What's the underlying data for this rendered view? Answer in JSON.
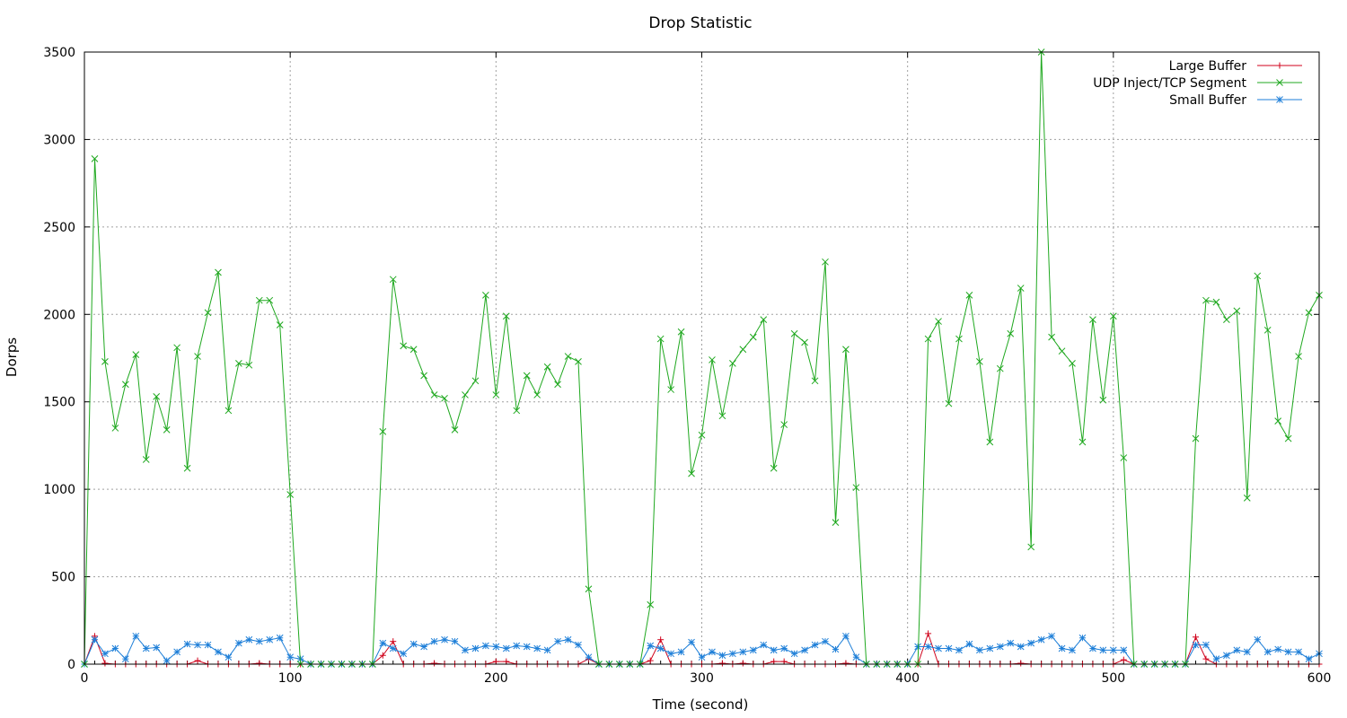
{
  "chart_data": {
    "type": "line",
    "title": "Drop Statistic",
    "xlabel": "Time (second)",
    "ylabel": "Dorps",
    "xlim": [
      0,
      600
    ],
    "ylim": [
      0,
      3500
    ],
    "x_ticks": [
      0,
      100,
      200,
      300,
      400,
      500,
      600
    ],
    "y_ticks": [
      0,
      500,
      1000,
      1500,
      2000,
      2500,
      3000,
      3500
    ],
    "grid": true,
    "legend_position": "top-right",
    "x": [
      0,
      5,
      10,
      15,
      20,
      25,
      30,
      35,
      40,
      45,
      50,
      55,
      60,
      65,
      70,
      75,
      80,
      85,
      90,
      95,
      100,
      105,
      110,
      115,
      120,
      125,
      130,
      135,
      140,
      145,
      150,
      155,
      160,
      165,
      170,
      175,
      180,
      185,
      190,
      195,
      200,
      205,
      210,
      215,
      220,
      225,
      230,
      235,
      240,
      245,
      250,
      255,
      260,
      265,
      270,
      275,
      280,
      285,
      290,
      295,
      300,
      305,
      310,
      315,
      320,
      325,
      330,
      335,
      340,
      345,
      350,
      355,
      360,
      365,
      370,
      375,
      380,
      385,
      390,
      395,
      400,
      405,
      410,
      415,
      420,
      425,
      430,
      435,
      440,
      445,
      450,
      455,
      460,
      465,
      470,
      475,
      480,
      485,
      490,
      495,
      500,
      505,
      510,
      515,
      520,
      525,
      530,
      535,
      540,
      545,
      550,
      555,
      560,
      565,
      570,
      575,
      580,
      585,
      590,
      595,
      600
    ],
    "series": [
      {
        "name": "Large Buffer",
        "color": "#d0021b",
        "marker": "plus",
        "values": [
          0,
          160,
          5,
          0,
          0,
          0,
          0,
          0,
          0,
          0,
          0,
          20,
          0,
          0,
          0,
          0,
          0,
          5,
          0,
          0,
          0,
          0,
          0,
          0,
          0,
          0,
          0,
          0,
          0,
          50,
          130,
          0,
          0,
          0,
          5,
          0,
          0,
          0,
          0,
          0,
          15,
          15,
          0,
          0,
          0,
          0,
          0,
          0,
          0,
          30,
          0,
          0,
          0,
          0,
          0,
          20,
          140,
          0,
          0,
          0,
          0,
          0,
          5,
          0,
          5,
          0,
          0,
          15,
          15,
          0,
          0,
          0,
          0,
          0,
          5,
          0,
          0,
          0,
          0,
          0,
          0,
          0,
          175,
          0,
          0,
          0,
          0,
          0,
          0,
          0,
          0,
          5,
          0,
          0,
          0,
          0,
          0,
          0,
          0,
          0,
          0,
          25,
          0,
          0,
          0,
          0,
          0,
          0,
          155,
          30,
          0,
          0,
          0,
          0,
          0,
          0,
          0,
          0,
          0,
          0,
          0
        ]
      },
      {
        "name": "UDP Inject/TCP Segment",
        "color": "#1fa81f",
        "marker": "x",
        "values": [
          0,
          2890,
          1730,
          1350,
          1600,
          1770,
          1170,
          1530,
          1340,
          1810,
          1120,
          1760,
          2010,
          2240,
          1450,
          1720,
          1710,
          2080,
          2080,
          1940,
          970,
          0,
          0,
          0,
          0,
          0,
          0,
          0,
          0,
          1330,
          2200,
          1820,
          1800,
          1650,
          1540,
          1520,
          1340,
          1540,
          1620,
          2110,
          1540,
          1990,
          1450,
          1650,
          1540,
          1700,
          1600,
          1760,
          1730,
          430,
          0,
          0,
          0,
          0,
          0,
          340,
          1860,
          1570,
          1900,
          1090,
          1310,
          1740,
          1420,
          1720,
          1800,
          1870,
          1970,
          1120,
          1370,
          1890,
          1840,
          1620,
          2300,
          810,
          1800,
          1010,
          0,
          0,
          0,
          0,
          0,
          0,
          1860,
          1960,
          1490,
          1860,
          2110,
          1730,
          1270,
          1690,
          1890,
          2150,
          670,
          3500,
          1870,
          1790,
          1720,
          1270,
          1970,
          1510,
          1990,
          1180,
          0,
          0,
          0,
          0,
          0,
          0,
          1290,
          2080,
          2070,
          1970,
          2020,
          950,
          2220,
          1910,
          1390,
          1290,
          1760,
          2010,
          2110
        ]
      },
      {
        "name": "Small Buffer",
        "color": "#1e7fd8",
        "marker": "star",
        "values": [
          0,
          140,
          60,
          90,
          30,
          160,
          90,
          95,
          20,
          70,
          115,
          110,
          110,
          70,
          40,
          120,
          140,
          130,
          140,
          150,
          40,
          30,
          0,
          0,
          0,
          0,
          0,
          0,
          0,
          120,
          90,
          60,
          115,
          100,
          130,
          140,
          130,
          80,
          90,
          105,
          100,
          90,
          105,
          100,
          90,
          80,
          130,
          140,
          110,
          40,
          0,
          0,
          0,
          0,
          0,
          105,
          90,
          60,
          70,
          125,
          40,
          70,
          50,
          60,
          70,
          80,
          110,
          80,
          90,
          60,
          80,
          110,
          130,
          85,
          160,
          40,
          0,
          0,
          0,
          0,
          0,
          100,
          100,
          90,
          90,
          80,
          115,
          80,
          90,
          100,
          120,
          100,
          120,
          140,
          160,
          90,
          80,
          150,
          90,
          80,
          80,
          80,
          0,
          0,
          0,
          0,
          0,
          0,
          110,
          110,
          30,
          50,
          80,
          70,
          140,
          70,
          85,
          70,
          70,
          30,
          60
        ]
      }
    ]
  }
}
